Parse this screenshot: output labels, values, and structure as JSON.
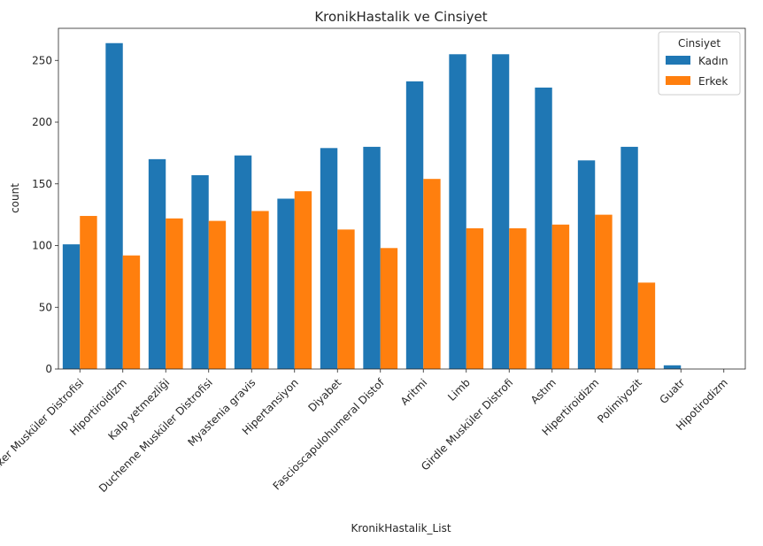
{
  "chart_data": {
    "type": "bar",
    "title": "KronikHastalik ve Cinsiyet",
    "xlabel": "KronikHastalik_List",
    "ylabel": "count",
    "ylim": [
      0,
      276
    ],
    "yticks": [
      0,
      50,
      100,
      150,
      200,
      250
    ],
    "categories": [
      "Becker Musküler Distrofisi",
      "Hiportiroidizm",
      "Kalp yetmezliği",
      "Duchenne Musküler Distrofisi",
      "Myastenia gravis",
      "Hipertansiyon",
      "Diyabet",
      "Fascioscapulohumeral Distof",
      "Aritmi",
      "Limb",
      "Girdle Musküler Distrofi",
      "Astım",
      "Hipertiroidizm",
      "Polimiyozit",
      "Guatr",
      "Hipotirodizm"
    ],
    "series": [
      {
        "name": "Kadın",
        "color": "#1f77b4",
        "values": [
          101,
          264,
          170,
          157,
          173,
          138,
          179,
          180,
          233,
          255,
          255,
          228,
          169,
          180,
          3,
          0
        ]
      },
      {
        "name": "Erkek",
        "color": "#ff7f0e",
        "values": [
          124,
          92,
          122,
          120,
          128,
          144,
          113,
          98,
          154,
          114,
          114,
          117,
          125,
          70,
          0,
          0
        ]
      }
    ],
    "legend": {
      "title": "Cinsiyet",
      "position": "top-right"
    },
    "grid": false
  }
}
